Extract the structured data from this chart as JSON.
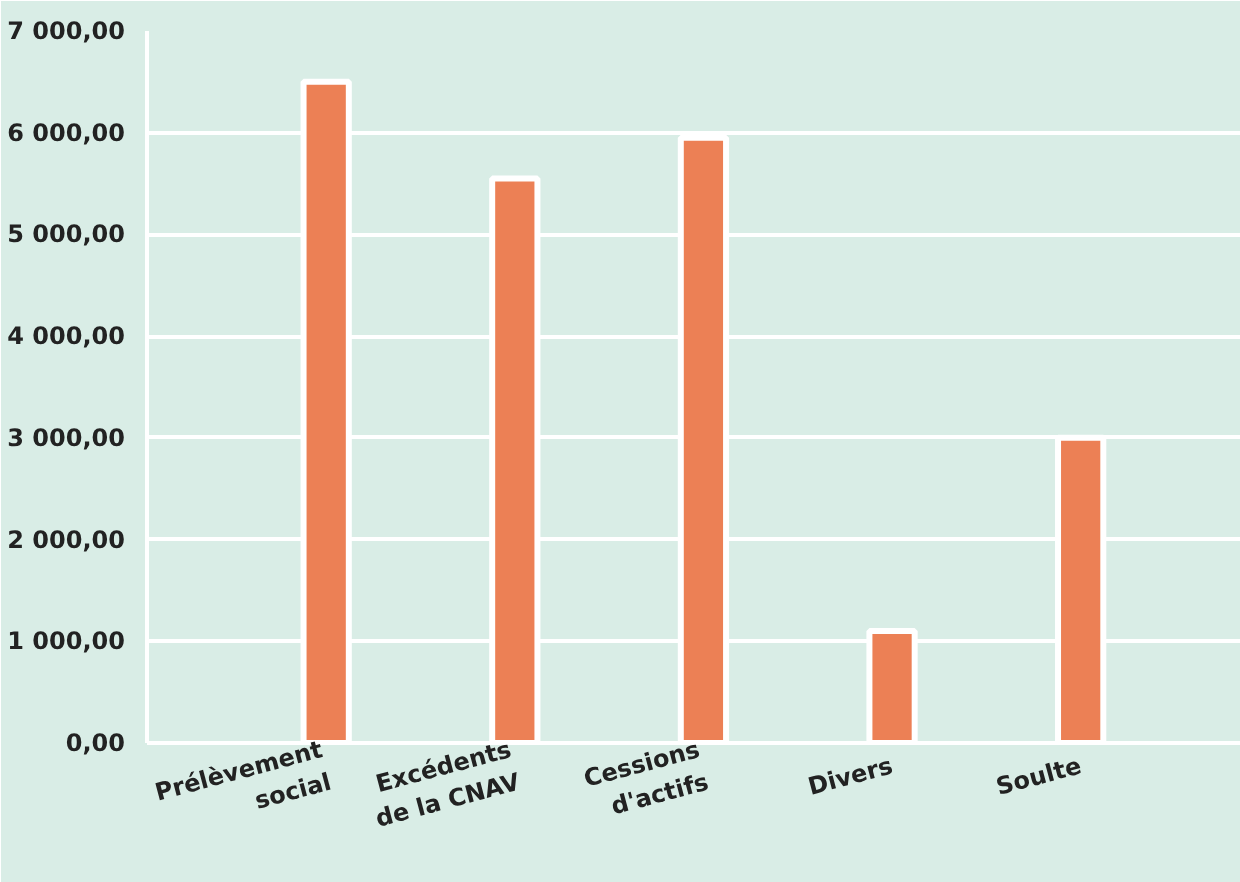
{
  "chart_data": {
    "type": "bar",
    "categories": [
      "Prélèvement\nsocial",
      "Excédents\nde la CNAV",
      "Cessions\nd'actifs",
      "Divers",
      "Soulte"
    ],
    "values": [
      6500,
      5550,
      5950,
      1100,
      3000
    ],
    "color": "#ec8055",
    "ylim": [
      0,
      7000
    ],
    "yticks": [
      {
        "value": 0,
        "label": "0,00"
      },
      {
        "value": 1000,
        "label": "1 000,00"
      },
      {
        "value": 2000,
        "label": "2 000,00"
      },
      {
        "value": 3000,
        "label": "3 000,00"
      },
      {
        "value": 4000,
        "label": "4 000,00"
      },
      {
        "value": 5000,
        "label": "5 000,00"
      },
      {
        "value": 6000,
        "label": "6 000,00"
      },
      {
        "value": 7000,
        "label": "7 000,00"
      }
    ],
    "grid": "y"
  }
}
